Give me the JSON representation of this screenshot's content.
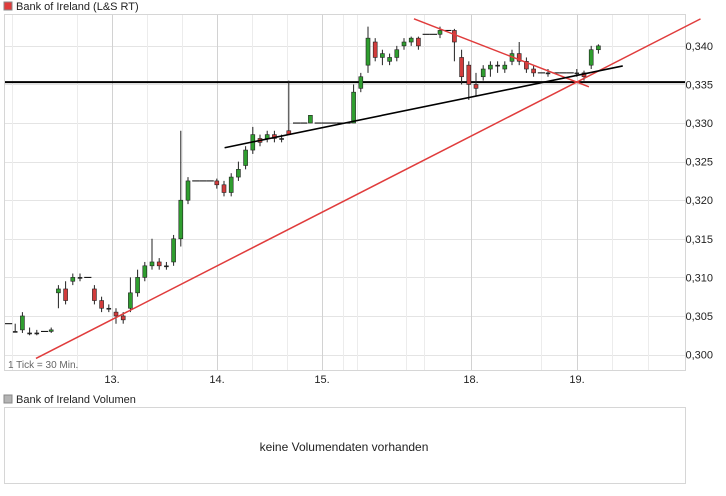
{
  "price_legend": {
    "label": "Bank of Ireland (L&S RT)",
    "swatch_color": "#e03c3c"
  },
  "volume_legend": {
    "label": "Bank of Ireland Volumen",
    "swatch_color": "#b4b4b4"
  },
  "tick_note": "1 Tick = 30 Min.",
  "no_volume_message": "keine Volumendaten vorhanden",
  "colors": {
    "up": "#2f9e2f",
    "down": "#d23c3c",
    "trendline_red": "#e03c3c",
    "support_line": "#000000"
  },
  "chart_data": {
    "type": "candlestick",
    "title": "Bank of Ireland (L&S RT)",
    "x_tick_labels": [
      "13.",
      "14.",
      "15.",
      "18.",
      "19."
    ],
    "y_ticks": [
      0.3,
      0.305,
      0.31,
      0.315,
      0.32,
      0.325,
      0.33,
      0.335,
      0.34
    ],
    "y_tick_labels": [
      "0,300",
      "0,305",
      "0,310",
      "0,315",
      "0,320",
      "0,325",
      "0,330",
      "0,335",
      "0,340"
    ],
    "ylim": [
      0.298,
      0.344
    ],
    "grid": true,
    "horizontal_line": 0.3353,
    "candles": [
      [
        0.304,
        0.304,
        0.304,
        0.304
      ],
      [
        0.303,
        0.303,
        0.304,
        0.303
      ],
      [
        0.3032,
        0.305,
        0.3055,
        0.3028
      ],
      [
        0.3028,
        0.3028,
        0.3035,
        0.3025
      ],
      [
        0.3028,
        0.3028,
        0.3032,
        0.3025
      ],
      [
        0.303,
        0.303,
        0.303,
        0.303
      ],
      [
        0.303,
        0.3032,
        0.3035,
        0.3028
      ],
      [
        0.308,
        0.3085,
        0.309,
        0.306
      ],
      [
        0.3085,
        0.307,
        0.3095,
        0.3065
      ],
      [
        0.3095,
        0.31,
        0.3105,
        0.309
      ],
      [
        0.31,
        0.31,
        0.3105,
        0.3095
      ],
      [
        0.31,
        0.31,
        0.31,
        0.31
      ],
      [
        0.3085,
        0.307,
        0.309,
        0.3065
      ],
      [
        0.307,
        0.306,
        0.3075,
        0.3055
      ],
      [
        0.306,
        0.306,
        0.3065,
        0.3055
      ],
      [
        0.3055,
        0.305,
        0.306,
        0.304
      ],
      [
        0.305,
        0.3045,
        0.3055,
        0.304
      ],
      [
        0.306,
        0.308,
        0.31,
        0.3055
      ],
      [
        0.308,
        0.31,
        0.311,
        0.3075
      ],
      [
        0.31,
        0.3115,
        0.312,
        0.3095
      ],
      [
        0.3115,
        0.312,
        0.315,
        0.311
      ],
      [
        0.312,
        0.3115,
        0.3125,
        0.311
      ],
      [
        0.3115,
        0.3115,
        0.312,
        0.311
      ],
      [
        0.312,
        0.315,
        0.3155,
        0.3115
      ],
      [
        0.315,
        0.32,
        0.329,
        0.314
      ],
      [
        0.32,
        0.3225,
        0.323,
        0.3195
      ],
      [
        0.3225,
        0.3225,
        0.3225,
        0.3225
      ],
      [
        0.3225,
        0.3225,
        0.3225,
        0.3225
      ],
      [
        0.3225,
        0.3225,
        0.3225,
        0.3225
      ],
      [
        0.3225,
        0.322,
        0.3228,
        0.3215
      ],
      [
        0.322,
        0.321,
        0.3225,
        0.3205
      ],
      [
        0.321,
        0.323,
        0.3235,
        0.3205
      ],
      [
        0.323,
        0.324,
        0.325,
        0.3225
      ],
      [
        0.3245,
        0.3265,
        0.327,
        0.324
      ],
      [
        0.3265,
        0.3285,
        0.3295,
        0.326
      ],
      [
        0.328,
        0.3275,
        0.3285,
        0.327
      ],
      [
        0.328,
        0.3285,
        0.329,
        0.3275
      ],
      [
        0.3285,
        0.328,
        0.329,
        0.3275
      ],
      [
        0.328,
        0.328,
        0.3285,
        0.3275
      ],
      [
        0.329,
        0.3285,
        0.3355,
        0.3285
      ],
      [
        0.33,
        0.33,
        0.33,
        0.33
      ],
      [
        0.33,
        0.33,
        0.33,
        0.33
      ],
      [
        0.33,
        0.331,
        0.331,
        0.33
      ],
      [
        0.33,
        0.33,
        0.33,
        0.33
      ],
      [
        0.33,
        0.33,
        0.33,
        0.33
      ],
      [
        0.33,
        0.33,
        0.33,
        0.33
      ],
      [
        0.33,
        0.33,
        0.33,
        0.33
      ],
      [
        0.33,
        0.33,
        0.33,
        0.33
      ],
      [
        0.33,
        0.334,
        0.335,
        0.33
      ],
      [
        0.3345,
        0.336,
        0.3365,
        0.334
      ],
      [
        0.3375,
        0.341,
        0.3425,
        0.3365
      ],
      [
        0.3405,
        0.3385,
        0.341,
        0.338
      ],
      [
        0.3385,
        0.339,
        0.3395,
        0.3375
      ],
      [
        0.338,
        0.3385,
        0.339,
        0.3375
      ],
      [
        0.3385,
        0.3395,
        0.34,
        0.338
      ],
      [
        0.34,
        0.3405,
        0.341,
        0.3395
      ],
      [
        0.3405,
        0.341,
        0.3412,
        0.34
      ],
      [
        0.341,
        0.34,
        0.3412,
        0.3395
      ],
      [
        0.3415,
        0.3415,
        0.3415,
        0.3415
      ],
      [
        0.3415,
        0.3415,
        0.3415,
        0.3415
      ],
      [
        0.3415,
        0.342,
        0.3425,
        0.341
      ],
      [
        0.342,
        0.342,
        0.342,
        0.342
      ],
      [
        0.342,
        0.3405,
        0.3422,
        0.338
      ],
      [
        0.3385,
        0.336,
        0.3395,
        0.335
      ],
      [
        0.3375,
        0.335,
        0.338,
        0.333
      ],
      [
        0.335,
        0.3345,
        0.3365,
        0.3335
      ],
      [
        0.336,
        0.337,
        0.3375,
        0.3355
      ],
      [
        0.337,
        0.3375,
        0.338,
        0.336
      ],
      [
        0.3375,
        0.3375,
        0.338,
        0.3365
      ],
      [
        0.337,
        0.3375,
        0.338,
        0.3365
      ],
      [
        0.338,
        0.339,
        0.3395,
        0.3375
      ],
      [
        0.339,
        0.338,
        0.3405,
        0.3375
      ],
      [
        0.338,
        0.337,
        0.3385,
        0.3365
      ],
      [
        0.337,
        0.3365,
        0.3375,
        0.336
      ],
      [
        0.3365,
        0.3365,
        0.3365,
        0.3365
      ],
      [
        0.3365,
        0.3365,
        0.337,
        0.336
      ],
      [
        0.3365,
        0.3365,
        0.3365,
        0.3365
      ],
      [
        0.3365,
        0.3365,
        0.3365,
        0.3365
      ],
      [
        0.3365,
        0.3365,
        0.3365,
        0.3365
      ],
      [
        0.3365,
        0.3365,
        0.337,
        0.336
      ],
      [
        0.3365,
        0.336,
        0.3368,
        0.3355
      ],
      [
        0.3375,
        0.3395,
        0.34,
        0.337
      ],
      [
        0.3395,
        0.34,
        0.3402,
        0.339
      ]
    ],
    "trend_lines": [
      {
        "name": "upper resistance",
        "color": "red",
        "from": [
          56.8,
          0.3435
        ],
        "to": [
          81.1,
          0.3347
        ]
      },
      {
        "name": "long support",
        "color": "red",
        "from": [
          4.3,
          0.2995
        ],
        "to": [
          96.6,
          0.3435
        ]
      },
      {
        "name": "short support",
        "color": "black",
        "from": [
          30.5,
          0.3268
        ],
        "to": [
          85.8,
          0.3374
        ]
      }
    ]
  }
}
